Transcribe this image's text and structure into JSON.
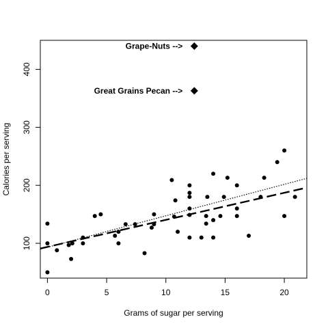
{
  "chart_data": {
    "type": "scatter",
    "title": "",
    "xlabel": "Grams of sugar per serving",
    "ylabel": "Calories per serving",
    "xlim": [
      -0.6,
      21.9
    ],
    "ylim": [
      40,
      450
    ],
    "xticks": [
      0,
      5,
      10,
      15,
      20
    ],
    "yticks": [
      100,
      200,
      300,
      400
    ],
    "grid": false,
    "legend": "none",
    "point_color": "#000000",
    "points": [
      {
        "x": 0,
        "y": 50
      },
      {
        "x": 0,
        "y": 100
      },
      {
        "x": 0,
        "y": 134
      },
      {
        "x": 0.8,
        "y": 88
      },
      {
        "x": 1.8,
        "y": 97
      },
      {
        "x": 2,
        "y": 73
      },
      {
        "x": 2.1,
        "y": 100
      },
      {
        "x": 3,
        "y": 100
      },
      {
        "x": 3,
        "y": 110
      },
      {
        "x": 4,
        "y": 147
      },
      {
        "x": 4.5,
        "y": 150
      },
      {
        "x": 5.7,
        "y": 113
      },
      {
        "x": 6,
        "y": 100
      },
      {
        "x": 6,
        "y": 120
      },
      {
        "x": 6.6,
        "y": 133
      },
      {
        "x": 7.4,
        "y": 133
      },
      {
        "x": 8.2,
        "y": 83
      },
      {
        "x": 8.8,
        "y": 127
      },
      {
        "x": 9,
        "y": 133
      },
      {
        "x": 9,
        "y": 150
      },
      {
        "x": 10.5,
        "y": 209
      },
      {
        "x": 10.7,
        "y": 146
      },
      {
        "x": 10.8,
        "y": 174
      },
      {
        "x": 11,
        "y": 120
      },
      {
        "x": 12,
        "y": 110
      },
      {
        "x": 12,
        "y": 149
      },
      {
        "x": 12,
        "y": 160
      },
      {
        "x": 12,
        "y": 180
      },
      {
        "x": 12,
        "y": 187
      },
      {
        "x": 12,
        "y": 200
      },
      {
        "x": 13,
        "y": 110
      },
      {
        "x": 13.4,
        "y": 134
      },
      {
        "x": 13.4,
        "y": 147
      },
      {
        "x": 13.5,
        "y": 180
      },
      {
        "x": 14,
        "y": 110
      },
      {
        "x": 14,
        "y": 140
      },
      {
        "x": 14,
        "y": 220
      },
      {
        "x": 14.6,
        "y": 147
      },
      {
        "x": 14.9,
        "y": 180
      },
      {
        "x": 15.2,
        "y": 213
      },
      {
        "x": 16,
        "y": 147
      },
      {
        "x": 16,
        "y": 160
      },
      {
        "x": 16,
        "y": 200
      },
      {
        "x": 17,
        "y": 113
      },
      {
        "x": 18,
        "y": 180
      },
      {
        "x": 18.3,
        "y": 213
      },
      {
        "x": 19.4,
        "y": 240
      },
      {
        "x": 20,
        "y": 147
      },
      {
        "x": 20,
        "y": 260
      },
      {
        "x": 20.9,
        "y": 180
      }
    ],
    "highlighted_points": [
      {
        "label": "Grape-Nuts -->",
        "x": 12.4,
        "y": 440
      },
      {
        "label": "Great Grains Pecan -->",
        "x": 12.4,
        "y": 363
      }
    ],
    "lines": [
      {
        "style": "dotted",
        "x": [
          -0.6,
          21.9
        ],
        "y": [
          90,
          212
        ]
      },
      {
        "style": "dashed",
        "x": [
          -0.6,
          21.9
        ],
        "y": [
          91,
          196
        ]
      }
    ]
  }
}
